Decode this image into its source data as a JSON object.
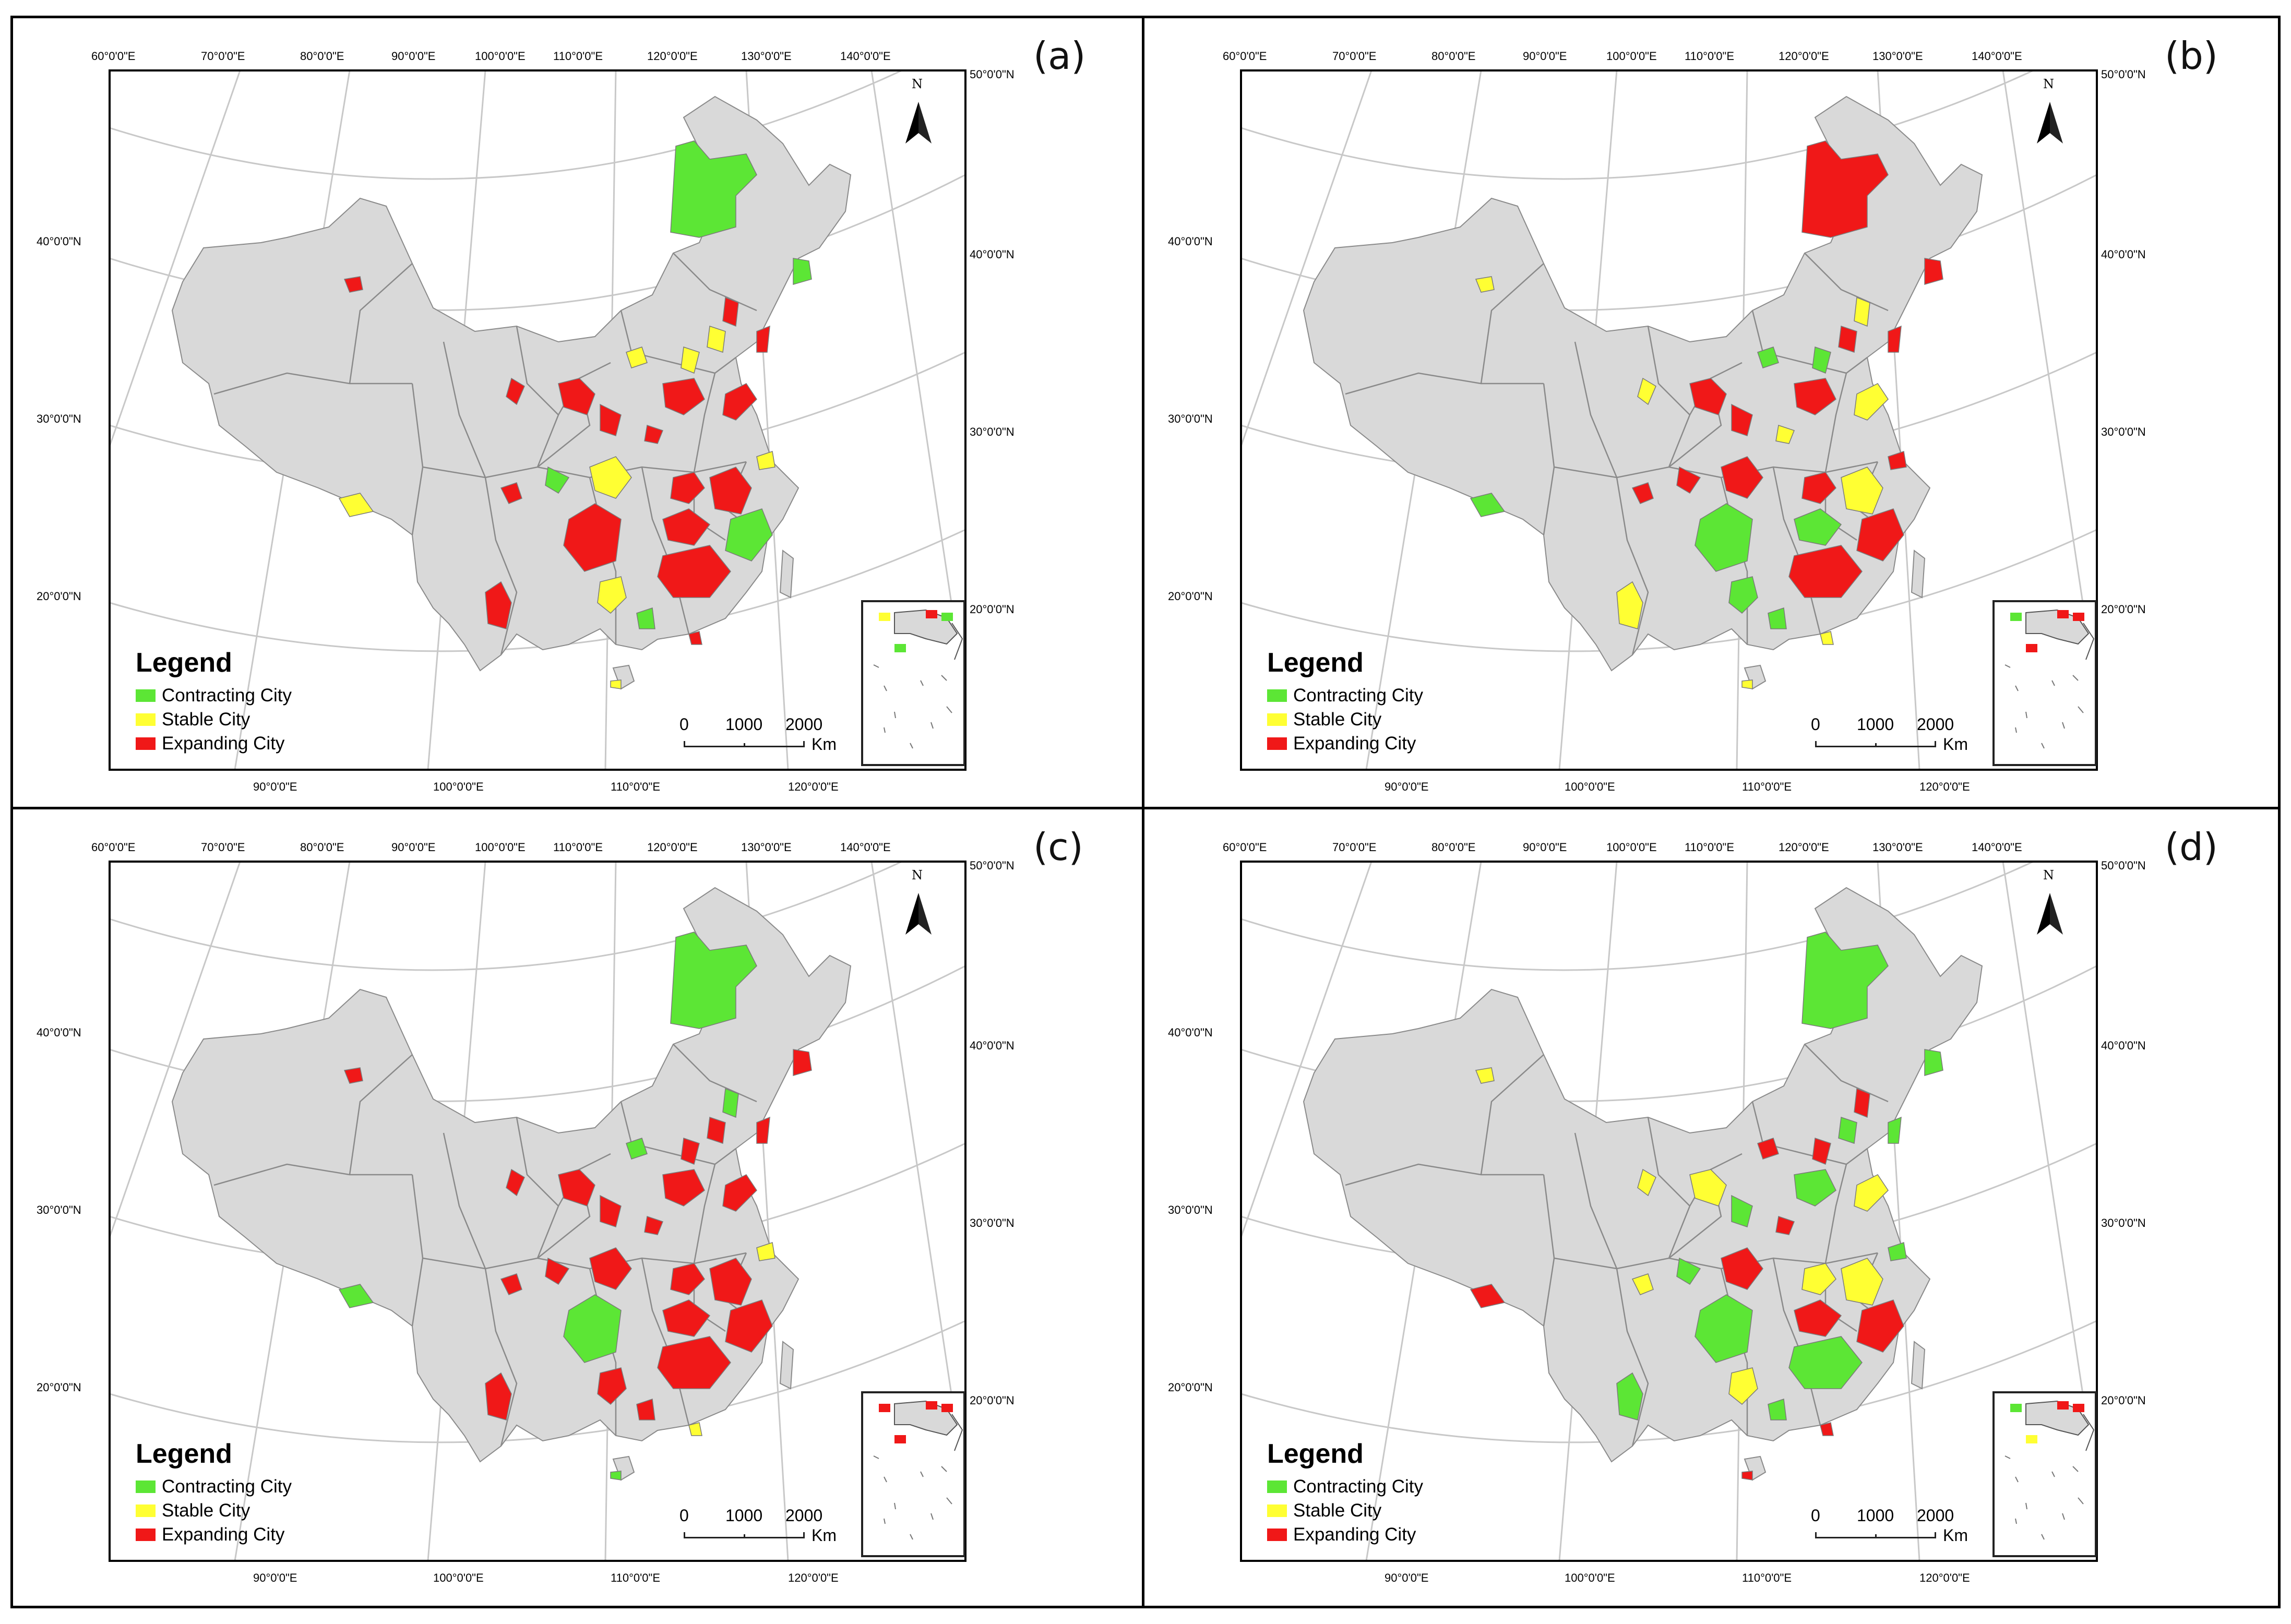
{
  "legend": {
    "title": "Legend",
    "contracting": "Contracting City",
    "stable": "Stable City",
    "expanding": "Expanding City"
  },
  "colors": {
    "contracting": "#5ce635",
    "stable": "#ffff33",
    "expanding": "#f01818",
    "land": "#d9d9d9",
    "border": "#8a8a8a"
  },
  "top_ticks": [
    "60°0'0\"E",
    "70°0'0\"E",
    "80°0'0\"E",
    "90°0'0\"E",
    "100°0'0\"E",
    "110°0'0\"E",
    "120°0'0\"E",
    "130°0'0\"E",
    "140°0'0\"E"
  ],
  "bottom_ticks": [
    "90°0'0\"E",
    "100°0'0\"E",
    "110°0'0\"E",
    "120°0'0\"E"
  ],
  "left_ticks": [
    "40°0'0\"N",
    "30°0'0\"N",
    "20°0'0\"N"
  ],
  "right_ticks": [
    "50°0'0\"N",
    "40°0'0\"N",
    "30°0'0\"N",
    "20°0'0\"N"
  ],
  "scale": {
    "zero": "0",
    "mid": "1000",
    "max": "2000",
    "unit": "Km"
  },
  "north": "N",
  "panels": [
    {
      "label": "(a)"
    },
    {
      "label": "(b)"
    },
    {
      "label": "(c)"
    },
    {
      "label": "(d)"
    }
  ]
}
